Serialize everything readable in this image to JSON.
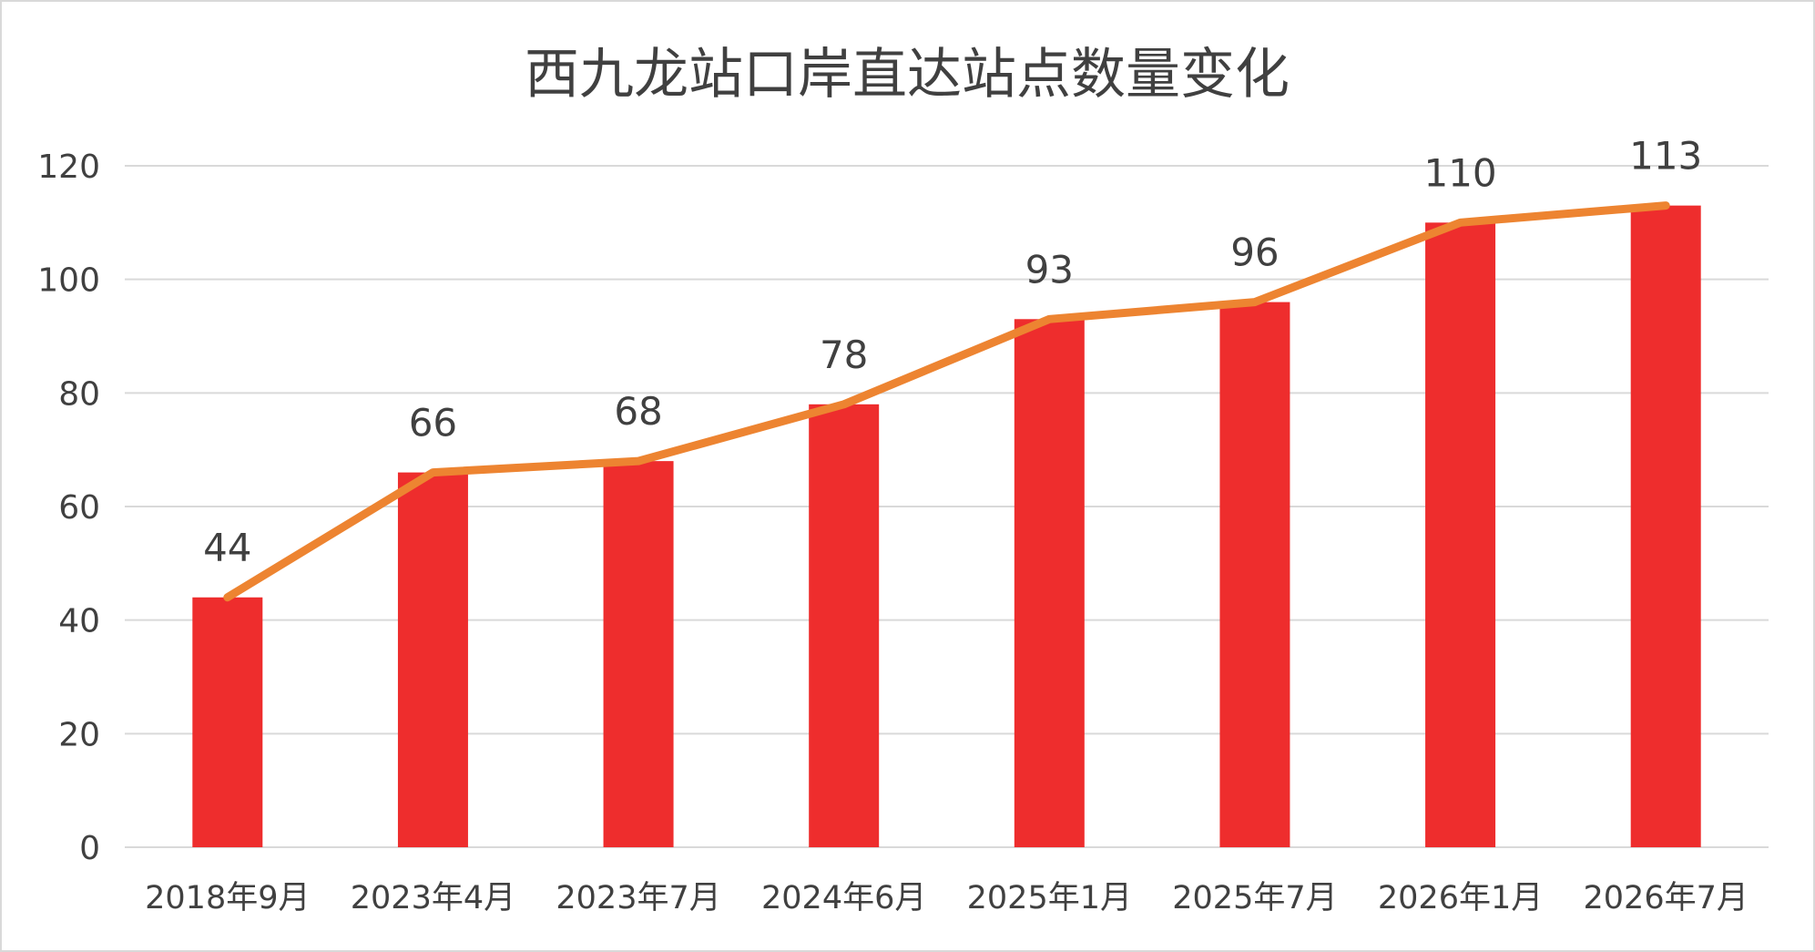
{
  "chart_data": {
    "type": "bar",
    "title": "西九龙站口岸直达站点数量变化",
    "xlabel": "",
    "ylabel": "",
    "categories": [
      "2018年9月",
      "2023年4月",
      "2023年7月",
      "2024年6月",
      "2025年1月",
      "2025年7月",
      "2026年1月",
      "2026年7月"
    ],
    "series": [
      {
        "type": "bar",
        "values": [
          44,
          66,
          68,
          78,
          93,
          96,
          110,
          113
        ],
        "color": "#ee2d2d"
      },
      {
        "type": "line",
        "values": [
          44,
          66,
          68,
          78,
          93,
          96,
          110,
          113
        ],
        "color": "#ed8431"
      }
    ],
    "data_labels": [
      "44",
      "66",
      "68",
      "78",
      "93",
      "96",
      "110",
      "113"
    ],
    "ylim": [
      0,
      120
    ],
    "yticks": [
      "0",
      "20",
      "40",
      "60",
      "80",
      "100",
      "120"
    ],
    "grid": true,
    "legend": "none"
  }
}
